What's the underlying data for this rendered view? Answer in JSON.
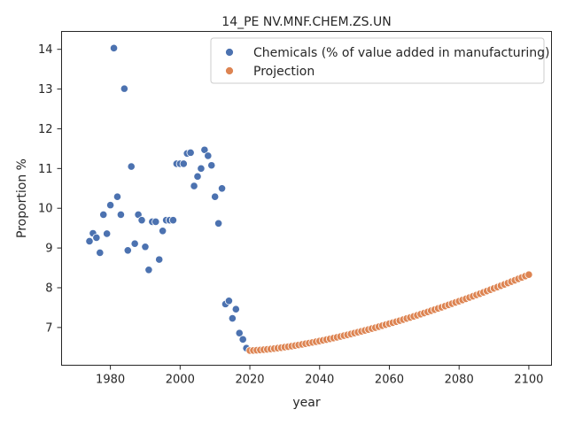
{
  "chart_data": {
    "type": "scatter",
    "title": "14_PE NV.MNF.CHEM.ZS.UN",
    "xlabel": "year",
    "ylabel": "Proportion %",
    "xlim": [
      1966,
      2106.5
    ],
    "ylim": [
      6.05,
      14.45
    ],
    "xticks": [
      1980,
      2000,
      2020,
      2040,
      2060,
      2080,
      2100
    ],
    "yticks": [
      7,
      8,
      9,
      10,
      11,
      12,
      13,
      14
    ],
    "grid": false,
    "legend_position": "top-right",
    "colors": {
      "historical": "#4c72b0",
      "projection": "#dd8452"
    },
    "series": [
      {
        "name": "Chemicals (% of value added in manufacturing)",
        "x": [
          1974,
          1975,
          1976,
          1977,
          1978,
          1979,
          1980,
          1981,
          1982,
          1983,
          1984,
          1985,
          1986,
          1987,
          1988,
          1989,
          1990,
          1991,
          1992,
          1993,
          1994,
          1995,
          1996,
          1997,
          1998,
          1999,
          2000,
          2001,
          2002,
          2003,
          2004,
          2005,
          2006,
          2007,
          2008,
          2009,
          2010,
          2011,
          2012,
          2013,
          2014,
          2015,
          2016,
          2017,
          2018,
          2019,
          2020
        ],
        "y": [
          9.17,
          9.37,
          9.26,
          8.88,
          9.84,
          9.36,
          10.08,
          14.03,
          10.29,
          9.84,
          13.01,
          8.94,
          11.05,
          9.11,
          9.84,
          9.7,
          9.03,
          8.45,
          9.66,
          9.66,
          8.71,
          9.43,
          9.7,
          9.7,
          9.7,
          11.12,
          11.12,
          11.12,
          11.38,
          11.4,
          10.56,
          10.8,
          11.0,
          11.47,
          11.32,
          11.08,
          10.29,
          9.62,
          10.5,
          7.59,
          7.67,
          7.23,
          7.46,
          6.86,
          6.7,
          6.48,
          6.42
        ]
      },
      {
        "name": "Projection",
        "x_start": 2020,
        "x_end": 2100,
        "y_start": 6.42,
        "y_end": 8.33,
        "curve_exponent": 1.5
      }
    ]
  }
}
